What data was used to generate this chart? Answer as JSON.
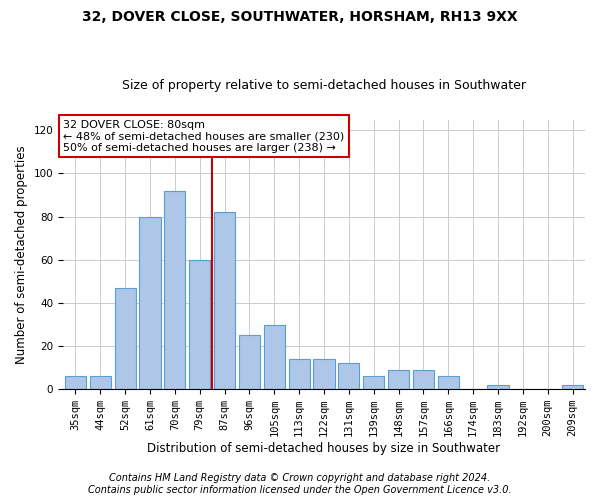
{
  "title_line1": "32, DOVER CLOSE, SOUTHWATER, HORSHAM, RH13 9XX",
  "title_line2": "Size of property relative to semi-detached houses in Southwater",
  "xlabel": "Distribution of semi-detached houses by size in Southwater",
  "ylabel": "Number of semi-detached properties",
  "footnote_line1": "Contains HM Land Registry data © Crown copyright and database right 2024.",
  "footnote_line2": "Contains public sector information licensed under the Open Government Licence v3.0.",
  "categories": [
    "35sqm",
    "44sqm",
    "52sqm",
    "61sqm",
    "70sqm",
    "79sqm",
    "87sqm",
    "96sqm",
    "105sqm",
    "113sqm",
    "122sqm",
    "131sqm",
    "139sqm",
    "148sqm",
    "157sqm",
    "166sqm",
    "174sqm",
    "183sqm",
    "192sqm",
    "200sqm",
    "209sqm"
  ],
  "values": [
    6,
    6,
    47,
    80,
    92,
    60,
    82,
    25,
    30,
    14,
    14,
    12,
    6,
    9,
    9,
    6,
    0,
    2,
    0,
    0,
    2
  ],
  "bar_color": "#aec6e8",
  "bar_edgecolor": "#5a9fd4",
  "vline_x": 5.5,
  "vline_color": "#cc0000",
  "annotation_line1": "32 DOVER CLOSE: 80sqm",
  "annotation_line2": "← 48% of semi-detached houses are smaller (230)",
  "annotation_line3": "50% of semi-detached houses are larger (238) →",
  "annotation_box_edgecolor": "#cc0000",
  "annotation_box_facecolor": "#ffffff",
  "ylim": [
    0,
    125
  ],
  "yticks": [
    0,
    20,
    40,
    60,
    80,
    100,
    120
  ],
  "grid_color": "#cccccc",
  "background_color": "#ffffff",
  "title_fontsize": 10,
  "subtitle_fontsize": 9,
  "axis_label_fontsize": 8.5,
  "tick_fontsize": 7.5,
  "annotation_fontsize": 8,
  "footnote_fontsize": 7
}
